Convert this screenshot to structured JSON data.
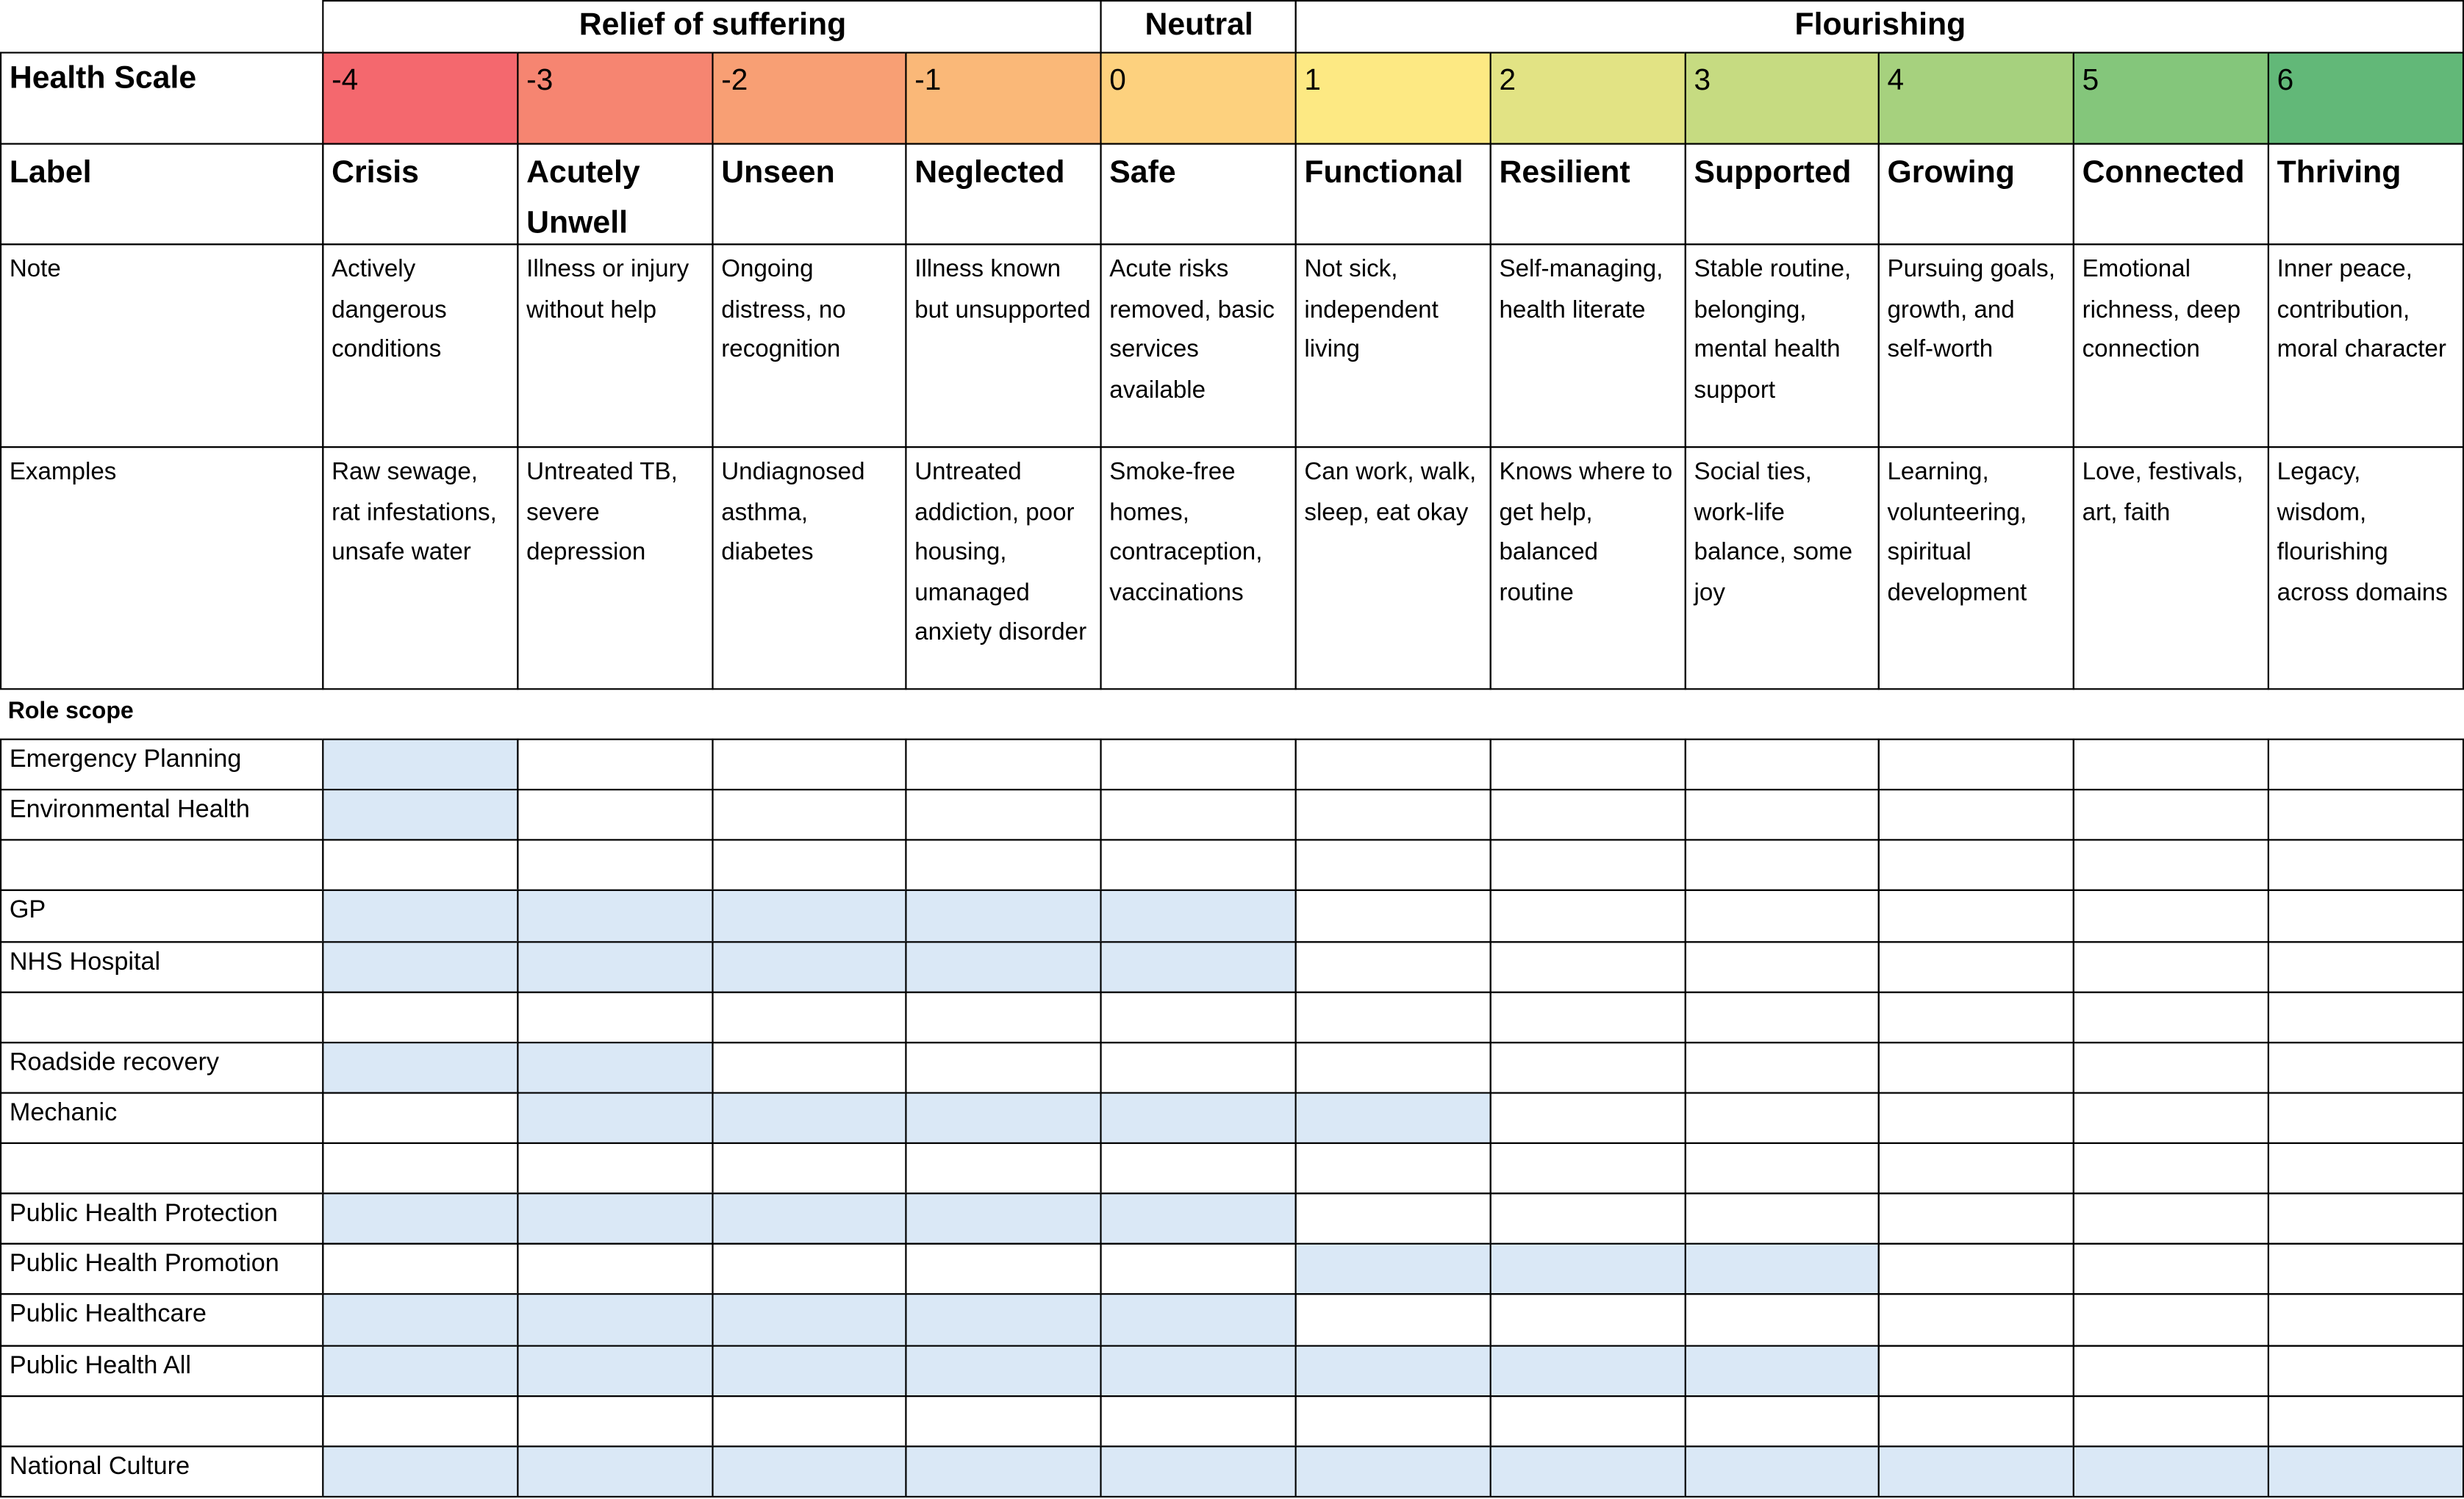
{
  "header_groups": [
    {
      "title": "Relief of suffering",
      "span": 4
    },
    {
      "title": "Neutral",
      "span": 1
    },
    {
      "title": "Flourishing",
      "span": 6
    }
  ],
  "row_headings": {
    "scale": "Health Scale",
    "label": "Label",
    "note": "Note",
    "examples": "Examples"
  },
  "columns": [
    {
      "value": -4,
      "color": "#f4686e",
      "label": "Crisis",
      "note": "Actively dangerous conditions",
      "examples": "Raw sewage, rat infestations, unsafe water"
    },
    {
      "value": -3,
      "color": "#f68571",
      "label": "Acutely Unwell",
      "note": "Illness or injury without help",
      "examples": "Untreated TB, severe depression"
    },
    {
      "value": -2,
      "color": "#f89f74",
      "label": "Unseen",
      "note": "Ongoing distress, no recognition",
      "examples": "Undiagnosed asthma, diabetes"
    },
    {
      "value": -1,
      "color": "#fab878",
      "label": "Neglected",
      "note": "Illness known but unsupported",
      "examples": "Untreated addiction, poor housing, umanaged anxiety disorder"
    },
    {
      "value": 0,
      "color": "#fdd17e",
      "label": "Safe",
      "note": "Acute risks removed, basic services available",
      "examples": "Smoke-free homes, contraception, vaccinations"
    },
    {
      "value": 1,
      "color": "#fde983",
      "label": "Functional",
      "note": "Not sick, independent living",
      "examples": "Can work, walk, sleep, eat okay"
    },
    {
      "value": 2,
      "color": "#e2e384",
      "label": "Resilient",
      "note": "Self-managing, health literate",
      "examples": "Knows where to get help, balanced routine"
    },
    {
      "value": 3,
      "color": "#c6db81",
      "label": "Supported",
      "note": "Stable routine, belonging, mental health support",
      "examples": "Social ties, work-life balance, some joy"
    },
    {
      "value": 4,
      "color": "#a6d17e",
      "label": "Growing",
      "note": "Pursuing goals, growth, and self-worth",
      "examples": "Learning, volunteering, spiritual development"
    },
    {
      "value": 5,
      "color": "#84c67b",
      "label": "Connected",
      "note": "Emotional richness, deep connection",
      "examples": "Love, festivals, art, faith"
    },
    {
      "value": 6,
      "color": "#62b878",
      "label": "Thriving",
      "note": "Inner peace, contribution, moral character",
      "examples": "Legacy, wisdom, flourishing across domains"
    }
  ],
  "role_scope_title": "Role scope",
  "shade_color": "#dae8f6",
  "roles": [
    {
      "name": "Emergency Planning",
      "scope": [
        -4,
        -4
      ]
    },
    {
      "name": "Environmental Health",
      "scope": [
        -4,
        -4
      ]
    },
    {
      "name": null,
      "scope": null
    },
    {
      "name": "GP",
      "scope": [
        -4,
        0
      ]
    },
    {
      "name": "NHS Hospital",
      "scope": [
        -4,
        0
      ]
    },
    {
      "name": null,
      "scope": null
    },
    {
      "name": "Roadside recovery",
      "scope": [
        -4,
        -3
      ]
    },
    {
      "name": "Mechanic",
      "scope": [
        -3,
        1
      ]
    },
    {
      "name": null,
      "scope": null
    },
    {
      "name": "Public Health Protection",
      "scope": [
        -4,
        0
      ]
    },
    {
      "name": "Public Health Promotion",
      "scope": [
        1,
        3
      ]
    },
    {
      "name": "Public Healthcare",
      "scope": [
        -4,
        0
      ]
    },
    {
      "name": "Public Health All",
      "scope": [
        -4,
        3
      ]
    },
    {
      "name": null,
      "scope": null
    },
    {
      "name": "National Culture",
      "scope": [
        -4,
        6
      ]
    }
  ]
}
